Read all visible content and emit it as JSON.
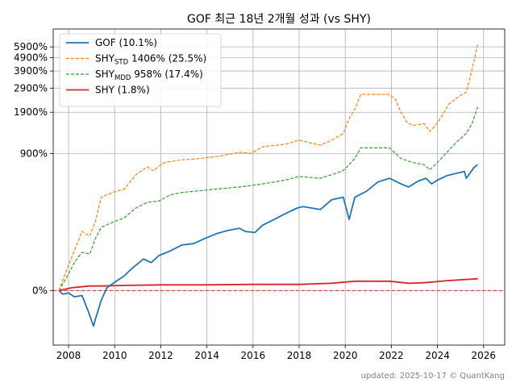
{
  "chart_data": {
    "type": "line",
    "title": "GOF 최근 18년 2개월 성과 (vs SHY)",
    "xlabel": "",
    "ylabel": "",
    "y_scale": "log(1+r)",
    "x_ticks": [
      "2008",
      "2010",
      "2012",
      "2014",
      "2016",
      "2018",
      "2020",
      "2022",
      "2024",
      "2026"
    ],
    "y_ticks": [
      "0%",
      "900%",
      "1900%",
      "2900%",
      "3900%",
      "4900%",
      "5900%"
    ],
    "xlim": [
      "2007-05",
      "2026-12"
    ],
    "ylim": [
      -60,
      8000
    ],
    "grid": true,
    "legend_position": "top-left",
    "reference_line": {
      "value": 0,
      "color": "#d62728",
      "style": "dashed"
    },
    "series": [
      {
        "name": "GOF (10.1%)",
        "legend": {
          "base": "GOF (10.1%)",
          "sub": "",
          "rest": ""
        },
        "color": "#1f77b4",
        "style": "solid",
        "points": [
          [
            "2007-08",
            0
          ],
          [
            "2007-10",
            -6
          ],
          [
            "2008-01",
            -4
          ],
          [
            "2008-04",
            -10
          ],
          [
            "2008-08",
            -8
          ],
          [
            "2008-11",
            -28
          ],
          [
            "2009-02",
            -45
          ],
          [
            "2009-03",
            -38
          ],
          [
            "2009-06",
            -15
          ],
          [
            "2009-09",
            5
          ],
          [
            "2010-01",
            15
          ],
          [
            "2010-06",
            28
          ],
          [
            "2010-10",
            45
          ],
          [
            "2011-04",
            70
          ],
          [
            "2011-08",
            60
          ],
          [
            "2011-12",
            80
          ],
          [
            "2012-06",
            95
          ],
          [
            "2012-12",
            115
          ],
          [
            "2013-06",
            120
          ],
          [
            "2013-12",
            140
          ],
          [
            "2014-06",
            160
          ],
          [
            "2014-12",
            175
          ],
          [
            "2015-06",
            185
          ],
          [
            "2015-09",
            170
          ],
          [
            "2016-02",
            165
          ],
          [
            "2016-06",
            200
          ],
          [
            "2016-12",
            230
          ],
          [
            "2017-06",
            265
          ],
          [
            "2017-12",
            300
          ],
          [
            "2018-03",
            310
          ],
          [
            "2018-12",
            290
          ],
          [
            "2019-06",
            360
          ],
          [
            "2019-12",
            380
          ],
          [
            "2020-03",
            230
          ],
          [
            "2020-06",
            380
          ],
          [
            "2020-12",
            430
          ],
          [
            "2021-06",
            520
          ],
          [
            "2021-12",
            560
          ],
          [
            "2022-06",
            500
          ],
          [
            "2022-10",
            470
          ],
          [
            "2023-03",
            530
          ],
          [
            "2023-07",
            560
          ],
          [
            "2023-10",
            500
          ],
          [
            "2024-01",
            540
          ],
          [
            "2024-06",
            590
          ],
          [
            "2025-03",
            640
          ],
          [
            "2025-04",
            560
          ],
          [
            "2025-08",
            690
          ],
          [
            "2025-10",
            730
          ]
        ]
      },
      {
        "name": "SHYSTD 1406% (25.5%)",
        "legend": {
          "base": "SHY",
          "sub": "STD",
          "rest": " 1406% (25.5%)"
        },
        "color": "#ff7f0e",
        "style": "dashed",
        "points": [
          [
            "2007-08",
            0
          ],
          [
            "2007-11",
            30
          ],
          [
            "2008-03",
            80
          ],
          [
            "2008-08",
            170
          ],
          [
            "2008-12",
            150
          ],
          [
            "2009-03",
            220
          ],
          [
            "2009-06",
            380
          ],
          [
            "2009-12",
            420
          ],
          [
            "2010-06",
            450
          ],
          [
            "2010-12",
            600
          ],
          [
            "2011-06",
            700
          ],
          [
            "2011-09",
            650
          ],
          [
            "2012-03",
            760
          ],
          [
            "2012-12",
            800
          ],
          [
            "2013-06",
            810
          ],
          [
            "2014-06",
            850
          ],
          [
            "2015-06",
            920
          ],
          [
            "2015-12",
            900
          ],
          [
            "2016-06",
            1020
          ],
          [
            "2017-06",
            1070
          ],
          [
            "2018-01",
            1150
          ],
          [
            "2018-12",
            1050
          ],
          [
            "2019-06",
            1150
          ],
          [
            "2019-12",
            1300
          ],
          [
            "2020-03",
            1700
          ],
          [
            "2020-06",
            2000
          ],
          [
            "2020-09",
            2600
          ],
          [
            "2021-12",
            2600
          ],
          [
            "2022-03",
            2400
          ],
          [
            "2022-06",
            1900
          ],
          [
            "2022-09",
            1600
          ],
          [
            "2022-12",
            1500
          ],
          [
            "2023-06",
            1550
          ],
          [
            "2023-09",
            1350
          ],
          [
            "2023-12",
            1500
          ],
          [
            "2024-03",
            1750
          ],
          [
            "2024-07",
            2200
          ],
          [
            "2024-12",
            2500
          ],
          [
            "2025-04",
            2700
          ],
          [
            "2025-07",
            4000
          ],
          [
            "2025-10",
            6200
          ]
        ]
      },
      {
        "name": "SHYMDD 958% (17.4%)",
        "legend": {
          "base": "SHY",
          "sub": "MDD",
          "rest": " 958% (17.4%)"
        },
        "color": "#2ca02c",
        "style": "dashed",
        "points": [
          [
            "2007-08",
            0
          ],
          [
            "2007-12",
            25
          ],
          [
            "2008-04",
            60
          ],
          [
            "2008-08",
            90
          ],
          [
            "2008-12",
            85
          ],
          [
            "2009-03",
            140
          ],
          [
            "2009-06",
            190
          ],
          [
            "2009-12",
            215
          ],
          [
            "2010-06",
            240
          ],
          [
            "2010-12",
            300
          ],
          [
            "2011-06",
            340
          ],
          [
            "2011-12",
            350
          ],
          [
            "2012-06",
            400
          ],
          [
            "2012-12",
            420
          ],
          [
            "2013-06",
            430
          ],
          [
            "2014-06",
            450
          ],
          [
            "2015-06",
            470
          ],
          [
            "2016-06",
            500
          ],
          [
            "2017-06",
            540
          ],
          [
            "2018-01",
            580
          ],
          [
            "2018-12",
            560
          ],
          [
            "2019-06",
            600
          ],
          [
            "2019-12",
            650
          ],
          [
            "2020-06",
            820
          ],
          [
            "2020-09",
            1000
          ],
          [
            "2021-12",
            1000
          ],
          [
            "2022-06",
            820
          ],
          [
            "2022-12",
            760
          ],
          [
            "2023-06",
            730
          ],
          [
            "2023-09",
            660
          ],
          [
            "2024-01",
            760
          ],
          [
            "2024-07",
            960
          ],
          [
            "2024-12",
            1150
          ],
          [
            "2025-04",
            1300
          ],
          [
            "2025-07",
            1550
          ],
          [
            "2025-10",
            2100
          ]
        ]
      },
      {
        "name": "SHY (1.8%)",
        "legend": {
          "base": "SHY (1.8%)",
          "sub": "",
          "rest": ""
        },
        "color": "#d62728",
        "style": "solid",
        "points": [
          [
            "2007-08",
            0
          ],
          [
            "2008-03",
            5
          ],
          [
            "2008-12",
            8
          ],
          [
            "2009-06",
            8
          ],
          [
            "2010-06",
            9
          ],
          [
            "2012-01",
            10
          ],
          [
            "2014-01",
            10
          ],
          [
            "2016-01",
            11
          ],
          [
            "2018-01",
            11
          ],
          [
            "2019-06",
            13
          ],
          [
            "2020-06",
            17
          ],
          [
            "2021-12",
            17
          ],
          [
            "2022-10",
            13
          ],
          [
            "2023-06",
            14
          ],
          [
            "2024-06",
            18
          ],
          [
            "2025-06",
            21
          ],
          [
            "2025-10",
            22
          ]
        ]
      }
    ]
  },
  "footer": "updated: 2025-10-17 © QuantKang"
}
